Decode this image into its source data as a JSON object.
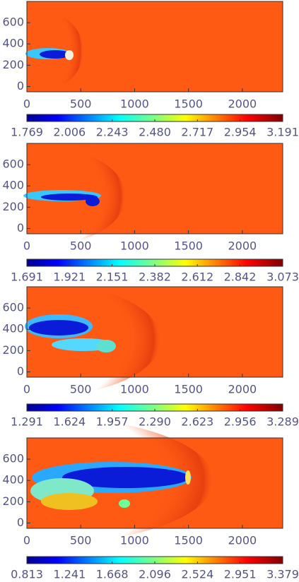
{
  "chart_data": [
    {
      "type": "heatmap",
      "xlim": [
        0,
        2375
      ],
      "ylim": [
        -50,
        800
      ],
      "xticks": [
        0,
        500,
        1000,
        1500,
        2000
      ],
      "yticks": [
        0,
        200,
        400,
        600
      ],
      "clim": [
        1.769,
        3.191
      ],
      "cticks": [
        1.769,
        2.006,
        2.243,
        {
          "value": 2.48,
          "label": "2.480"
        },
        2.717,
        2.954,
        3.191
      ]
    },
    {
      "type": "heatmap",
      "xlim": [
        0,
        2375
      ],
      "ylim": [
        -50,
        800
      ],
      "xticks": [
        0,
        500,
        1000,
        1500,
        2000
      ],
      "yticks": [
        0,
        200,
        400,
        600
      ],
      "clim": [
        1.691,
        3.073
      ],
      "cticks": [
        1.691,
        1.921,
        2.151,
        2.382,
        2.612,
        2.842,
        3.073
      ]
    },
    {
      "type": "heatmap",
      "xlim": [
        0,
        2375
      ],
      "ylim": [
        -50,
        800
      ],
      "xticks": [
        0,
        500,
        1000,
        1500,
        2000
      ],
      "yticks": [
        0,
        200,
        400,
        600
      ],
      "clim": [
        1.291,
        3.289
      ],
      "cticks": [
        1.291,
        1.624,
        1.957,
        {
          "value": 2.29,
          "label": "2.290"
        },
        2.623,
        2.956,
        3.289
      ]
    },
    {
      "type": "heatmap",
      "xlim": [
        0,
        2375
      ],
      "ylim": [
        -50,
        800
      ],
      "xticks": [
        0,
        500,
        1000,
        1500,
        2000
      ],
      "yticks": [
        0,
        200,
        400,
        600
      ],
      "clim": [
        0.813,
        3.379
      ],
      "cticks": [
        0.813,
        1.241,
        1.668,
        2.096,
        2.524,
        2.951,
        3.379
      ]
    }
  ]
}
